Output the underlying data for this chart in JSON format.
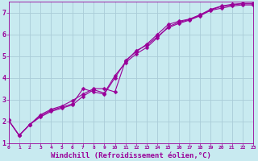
{
  "background_color": "#c8eaf0",
  "grid_color": "#aaccd8",
  "line_color": "#990099",
  "xlabel": "Windchill (Refroidissement éolien,°C)",
  "xlim": [
    0,
    23
  ],
  "ylim": [
    1,
    7.5
  ],
  "xticks": [
    0,
    1,
    2,
    3,
    4,
    5,
    6,
    7,
    8,
    9,
    10,
    11,
    12,
    13,
    14,
    15,
    16,
    17,
    18,
    19,
    20,
    21,
    22,
    23
  ],
  "yticks": [
    1,
    2,
    3,
    4,
    5,
    6,
    7
  ],
  "curve1_x": [
    0,
    1,
    2,
    3,
    4,
    5,
    6,
    7,
    8,
    9,
    10,
    11,
    12,
    13,
    14,
    15,
    16,
    17,
    18,
    19,
    20,
    21,
    22,
    23
  ],
  "curve1_y": [
    2.05,
    1.35,
    1.85,
    2.25,
    2.5,
    2.65,
    2.8,
    3.5,
    3.35,
    3.25,
    4.0,
    4.75,
    5.25,
    5.5,
    5.9,
    6.3,
    6.5,
    6.65,
    6.85,
    7.1,
    7.2,
    7.3,
    7.35,
    7.35
  ],
  "curve2_x": [
    0,
    1,
    2,
    3,
    4,
    5,
    6,
    7,
    8,
    9,
    10,
    11,
    12,
    13,
    14,
    15,
    16,
    17,
    18,
    19,
    20,
    21,
    22,
    23
  ],
  "curve2_y": [
    2.05,
    1.35,
    1.85,
    2.3,
    2.55,
    2.7,
    2.95,
    3.25,
    3.5,
    3.5,
    3.35,
    4.8,
    5.2,
    5.55,
    6.0,
    6.45,
    6.6,
    6.7,
    6.9,
    7.15,
    7.3,
    7.38,
    7.42,
    7.42
  ],
  "curve3_x": [
    0,
    1,
    2,
    3,
    4,
    5,
    6,
    7,
    8,
    9,
    10,
    11,
    12,
    13,
    14,
    15,
    16,
    17,
    18,
    19,
    20,
    21,
    22,
    23
  ],
  "curve3_y": [
    2.05,
    1.35,
    1.85,
    2.2,
    2.45,
    2.6,
    2.75,
    3.15,
    3.45,
    3.3,
    4.1,
    4.7,
    5.1,
    5.4,
    5.85,
    6.35,
    6.55,
    6.68,
    6.88,
    7.12,
    7.28,
    7.35,
    7.4,
    7.4
  ]
}
